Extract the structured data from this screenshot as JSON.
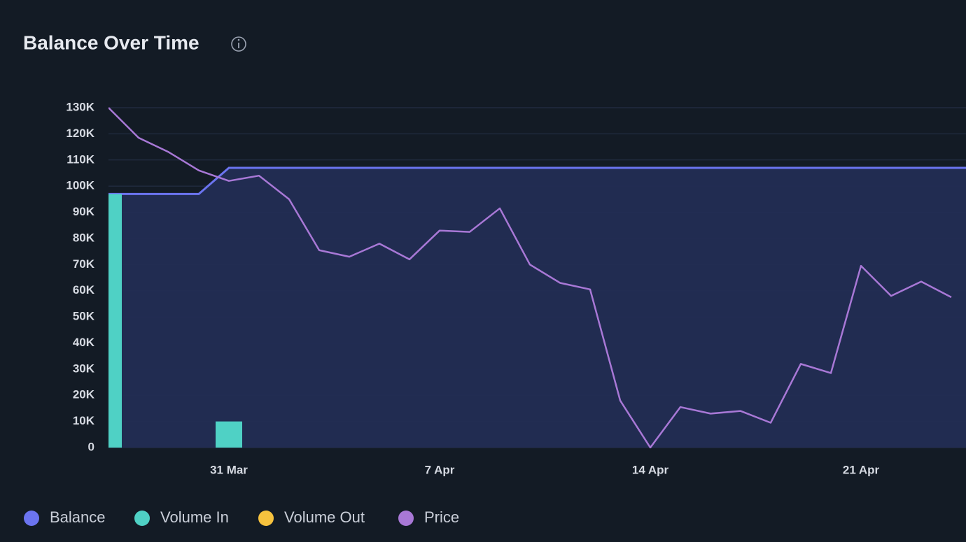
{
  "chart_data": {
    "type": "line",
    "title": "Balance Over Time",
    "categories": [
      null,
      null,
      null,
      null,
      "31 Mar",
      null,
      null,
      null,
      null,
      null,
      null,
      "7 Apr",
      null,
      null,
      null,
      null,
      null,
      null,
      "14 Apr",
      null,
      null,
      null,
      null,
      null,
      null,
      "21 Apr",
      null,
      null,
      null
    ],
    "series": [
      {
        "name": "Balance",
        "color": "#6b74f0",
        "kind": "area",
        "values": [
          97000,
          97000,
          97000,
          97000,
          107000,
          107000,
          107000,
          107000,
          107000,
          107000,
          107000,
          107000,
          107000,
          107000,
          107000,
          107000,
          107000,
          107000,
          107000,
          107000,
          107000,
          107000,
          107000,
          107000,
          107000,
          107000,
          107000,
          107000,
          107000
        ]
      },
      {
        "name": "Volume In",
        "color": "#4fd1c5",
        "kind": "bar",
        "values": [
          97000,
          0,
          0,
          0,
          10000,
          0,
          0,
          0,
          0,
          0,
          0,
          0,
          0,
          0,
          0,
          0,
          0,
          0,
          0,
          0,
          0,
          0,
          0,
          0,
          0,
          0,
          0,
          0,
          0
        ]
      },
      {
        "name": "Volume Out",
        "color": "#f6c23e",
        "kind": "bar",
        "values": [
          0,
          0,
          0,
          0,
          0,
          0,
          0,
          0,
          0,
          0,
          0,
          0,
          0,
          0,
          0,
          0,
          0,
          0,
          0,
          0,
          0,
          0,
          0,
          0,
          0,
          0,
          0,
          0,
          0
        ]
      },
      {
        "name": "Price",
        "color": "#a878d6",
        "kind": "line",
        "values": [
          130000,
          118500,
          113000,
          106000,
          102000,
          104000,
          95000,
          75500,
          73000,
          78000,
          72000,
          83000,
          82500,
          91500,
          70000,
          63000,
          60500,
          18000,
          0,
          15500,
          13000,
          14000,
          9500,
          32000,
          28500,
          69500,
          58000,
          63500,
          57500
        ]
      }
    ],
    "ylim": [
      0,
      130000
    ],
    "yticks": [
      0,
      {
        "value": 10000,
        "label": "10K"
      },
      {
        "value": 20000,
        "label": "20K"
      },
      {
        "value": 30000,
        "label": "30K"
      },
      {
        "value": 40000,
        "label": "40K"
      },
      {
        "value": 50000,
        "label": "50K"
      },
      {
        "value": 60000,
        "label": "60K"
      },
      {
        "value": 70000,
        "label": "70K"
      },
      {
        "value": 80000,
        "label": "80K"
      },
      {
        "value": 90000,
        "label": "90K"
      },
      {
        "value": 100000,
        "label": "100K"
      },
      {
        "value": 110000,
        "label": "110K"
      },
      {
        "value": 120000,
        "label": "120K"
      },
      {
        "value": 130000,
        "label": "130K"
      }
    ],
    "grid": true
  }
}
